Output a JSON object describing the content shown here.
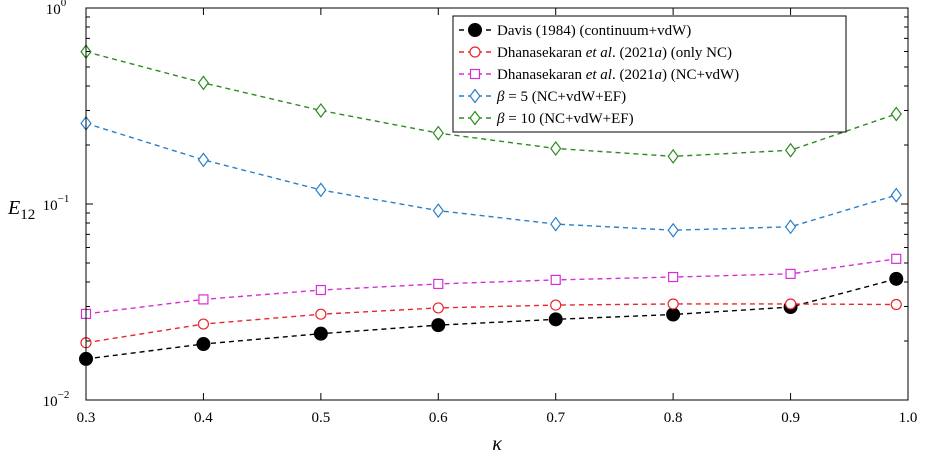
{
  "chart_data": {
    "type": "line",
    "xlabel": "κ",
    "ylabel": "E",
    "ylabel_sub": "12",
    "xlim": [
      0.3,
      1.0
    ],
    "ylim": [
      0.01,
      1.0
    ],
    "yscale": "log",
    "grid": false,
    "legend_position": "top-right",
    "x_ticks": [
      0.3,
      0.4,
      0.5,
      0.6,
      0.7,
      0.8,
      0.9,
      1.0
    ],
    "x_tick_labels": [
      "0.3",
      "0.4",
      "0.5",
      "0.6",
      "0.7",
      "0.8",
      "0.9",
      "1.0"
    ],
    "y_ticks": [
      {
        "value": 1.0,
        "base": "10",
        "exp": "0"
      },
      {
        "value": 0.1,
        "base": "10",
        "exp": "−1"
      },
      {
        "value": 0.01,
        "base": "10",
        "exp": "−2"
      }
    ],
    "x": [
      0.3,
      0.4,
      0.5,
      0.6,
      0.7,
      0.8,
      0.9,
      0.99
    ],
    "series": [
      {
        "legend_parts": [
          "Davis (1984) (continuum+vdW)"
        ],
        "color": "#000000",
        "marker": "filled-circle",
        "values": [
          0.0162,
          0.0193,
          0.0218,
          0.0241,
          0.0258,
          0.0273,
          0.0298,
          0.0415
        ]
      },
      {
        "legend_parts": [
          "Dhanasekaran ",
          "et al",
          ". (2021",
          "a",
          ") (only NC)"
        ],
        "legend_italic": [
          false,
          true,
          false,
          true,
          false
        ],
        "color": "#e8262b",
        "marker": "open-circle",
        "values": [
          0.0196,
          0.0244,
          0.0274,
          0.0295,
          0.0305,
          0.0309,
          0.0309,
          0.0307
        ]
      },
      {
        "legend_parts": [
          "Dhanasekaran ",
          "et al",
          ". (2021",
          "a",
          ") (NC+vdW)"
        ],
        "legend_italic": [
          false,
          true,
          false,
          true,
          false
        ],
        "color": "#d62fd6",
        "marker": "open-square",
        "values": [
          0.0275,
          0.0326,
          0.0364,
          0.0391,
          0.041,
          0.0424,
          0.044,
          0.0525
        ]
      },
      {
        "legend_parts": [
          "β",
          " = 5 (NC+vdW+EF)"
        ],
        "legend_italic": [
          true,
          false
        ],
        "color": "#2a7fc9",
        "marker": "open-diamond",
        "values": [
          0.258,
          0.168,
          0.118,
          0.0925,
          0.079,
          0.0735,
          0.0765,
          0.111
        ]
      },
      {
        "legend_parts": [
          "β",
          " = 10 (NC+vdW+EF)"
        ],
        "legend_italic": [
          true,
          false
        ],
        "color": "#2e8b22",
        "marker": "open-diamond",
        "values": [
          0.598,
          0.415,
          0.3,
          0.23,
          0.192,
          0.175,
          0.188,
          0.288
        ]
      }
    ]
  }
}
